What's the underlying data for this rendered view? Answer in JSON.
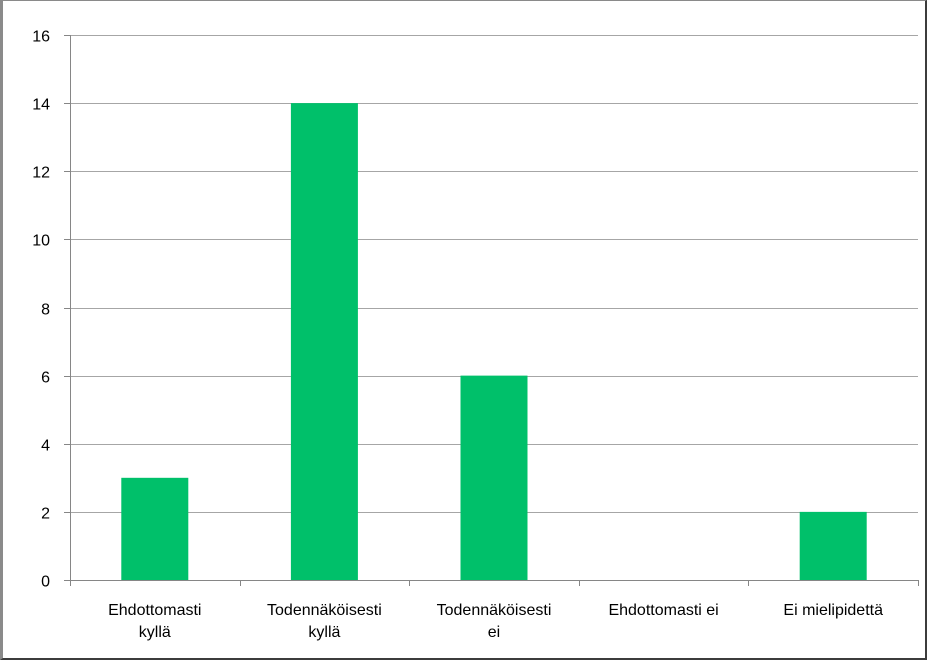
{
  "chart_data": {
    "type": "bar",
    "title": "",
    "xlabel": "",
    "ylabel": "",
    "categories": [
      [
        "Ehdottomasti",
        "kyllä"
      ],
      [
        "Todennäköisesti",
        "kyllä"
      ],
      [
        "Todennäköisesti",
        "ei"
      ],
      [
        "Ehdottomasti ei"
      ],
      [
        "Ei mielipidettä"
      ]
    ],
    "values": [
      3,
      14,
      6,
      0,
      2
    ],
    "ylim": [
      0,
      16
    ],
    "yticks": [
      0,
      2,
      4,
      6,
      8,
      10,
      12,
      14,
      16
    ],
    "grid": true,
    "legend": "none",
    "bar_color": "#00c06a",
    "grid_color": "#a6a6a6",
    "axis_color": "#868686"
  }
}
